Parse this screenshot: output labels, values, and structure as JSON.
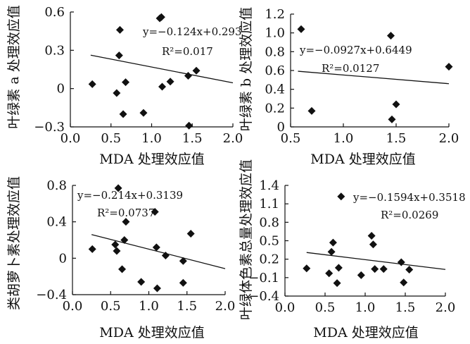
{
  "chart_data": [
    {
      "type": "scatter",
      "xlabel": "MDA 处理效应值",
      "ylabel": "叶绿素 a 处理效应值",
      "xlim": [
        0.0,
        2.0
      ],
      "ylim": [
        -0.3,
        0.6
      ],
      "xticks": [
        0.0,
        0.5,
        1.0,
        1.5,
        2.0
      ],
      "xtick_labels": [
        "0.0",
        "0.5",
        "1.0",
        "1.5",
        "2.0"
      ],
      "yticks": [
        -0.3,
        0.0,
        0.3,
        0.6
      ],
      "ytick_labels": [
        "−0.3",
        "0",
        "0.3",
        "0.6"
      ],
      "points": [
        {
          "x": 0.27,
          "y": 0.035
        },
        {
          "x": 0.57,
          "y": -0.035
        },
        {
          "x": 0.6,
          "y": 0.26
        },
        {
          "x": 0.61,
          "y": 0.46
        },
        {
          "x": 0.65,
          "y": -0.2
        },
        {
          "x": 0.68,
          "y": 0.05
        },
        {
          "x": 0.9,
          "y": -0.19
        },
        {
          "x": 1.1,
          "y": 0.55
        },
        {
          "x": 1.12,
          "y": 0.56
        },
        {
          "x": 1.13,
          "y": 0.015
        },
        {
          "x": 1.23,
          "y": 0.055
        },
        {
          "x": 1.45,
          "y": 0.1
        },
        {
          "x": 1.46,
          "y": -0.29
        },
        {
          "x": 1.55,
          "y": 0.14
        }
      ],
      "trendline": {
        "slope": -0.124,
        "intercept": 0.293,
        "x_range": [
          0.25,
          2.0
        ]
      },
      "equation": "y=−0.124x+0.293",
      "r2": "R²=0.017",
      "grid": false
    },
    {
      "type": "scatter",
      "xlabel": "MDA 处理效应值",
      "ylabel": "叶绿素 b 处理效应值",
      "xlim": [
        0.5,
        2.0
      ],
      "ylim": [
        0.0,
        1.2
      ],
      "xticks": [
        0.5,
        1.0,
        1.5,
        2.0
      ],
      "xtick_labels": [
        "0.5",
        "1.0",
        "1.5",
        "2.0"
      ],
      "yticks": [
        0.0,
        0.2,
        0.4,
        0.6,
        0.8,
        1.0,
        1.2
      ],
      "ytick_labels": [
        "0",
        "0.2",
        "0.4",
        "0.6",
        "0.8",
        "1.0",
        "1.2"
      ],
      "points": [
        {
          "x": 0.6,
          "y": 1.04
        },
        {
          "x": 0.7,
          "y": 0.17
        },
        {
          "x": 1.45,
          "y": 0.97
        },
        {
          "x": 1.46,
          "y": 0.08
        },
        {
          "x": 1.5,
          "y": 0.24
        },
        {
          "x": 2.0,
          "y": 0.64
        }
      ],
      "trendline": {
        "slope": -0.0927,
        "intercept": 0.6449,
        "x_range": [
          0.57,
          2.0
        ]
      },
      "equation": "y=−0.0927x+0.6449",
      "r2": "R²=0.0127",
      "grid": false
    },
    {
      "type": "scatter",
      "xlabel": "MDA 处理效应值",
      "ylabel": "类胡萝卜素处理效应值",
      "xlim": [
        0.0,
        2.0
      ],
      "ylim": [
        -0.4,
        0.8
      ],
      "xticks": [
        0.0,
        0.5,
        1.0,
        1.5,
        2.0
      ],
      "xtick_labels": [
        "0.0",
        "0.5",
        "1.0",
        "1.5",
        "2.0"
      ],
      "yticks": [
        -0.4,
        0.0,
        0.4,
        0.8
      ],
      "ytick_labels": [
        "−0.4",
        "0",
        "0.4",
        "0.8"
      ],
      "points": [
        {
          "x": 0.26,
          "y": 0.1
        },
        {
          "x": 0.56,
          "y": 0.15
        },
        {
          "x": 0.58,
          "y": 0.08
        },
        {
          "x": 0.6,
          "y": 0.77
        },
        {
          "x": 0.65,
          "y": -0.12
        },
        {
          "x": 0.68,
          "y": 0.2
        },
        {
          "x": 0.7,
          "y": 0.4
        },
        {
          "x": 0.9,
          "y": -0.26
        },
        {
          "x": 1.08,
          "y": 0.51
        },
        {
          "x": 1.1,
          "y": 0.12
        },
        {
          "x": 1.11,
          "y": -0.33
        },
        {
          "x": 1.22,
          "y": 0.03
        },
        {
          "x": 1.45,
          "y": -0.03
        },
        {
          "x": 1.45,
          "y": -0.27
        },
        {
          "x": 1.55,
          "y": 0.27
        }
      ],
      "trendline": {
        "slope": -0.214,
        "intercept": 0.3139,
        "x_range": [
          0.25,
          2.0
        ]
      },
      "equation": "y=−0.214x+0.3139",
      "r2": "R²=0.0737",
      "grid": false
    },
    {
      "type": "scatter",
      "xlabel": "MDA 处理效应值",
      "ylabel": "叶绿体色素总量处理效应值",
      "xlim": [
        0.0,
        2.0
      ],
      "ylim": [
        -0.4,
        1.4
      ],
      "xticks": [
        0.0,
        0.5,
        1.0,
        1.5,
        2.0
      ],
      "xtick_labels": [
        "0.0",
        "0.5",
        "1.0",
        "1.5",
        "2.0"
      ],
      "yticks": [
        -0.4,
        -0.1,
        0.2,
        0.5,
        0.8,
        1.1,
        1.4
      ],
      "ytick_labels": [
        "−0.4",
        "−0.1",
        "0.2",
        "0.5",
        "0.8",
        "1.1",
        "1.4"
      ],
      "points": [
        {
          "x": 0.27,
          "y": 0.05
        },
        {
          "x": 0.55,
          "y": -0.03
        },
        {
          "x": 0.58,
          "y": 0.32
        },
        {
          "x": 0.6,
          "y": 0.47
        },
        {
          "x": 0.65,
          "y": -0.19
        },
        {
          "x": 0.67,
          "y": 0.06
        },
        {
          "x": 0.7,
          "y": 1.22
        },
        {
          "x": 0.95,
          "y": -0.06
        },
        {
          "x": 1.08,
          "y": 0.58
        },
        {
          "x": 1.1,
          "y": 0.44
        },
        {
          "x": 1.12,
          "y": 0.04
        },
        {
          "x": 1.23,
          "y": 0.04
        },
        {
          "x": 1.45,
          "y": 0.15
        },
        {
          "x": 1.48,
          "y": -0.18
        },
        {
          "x": 1.55,
          "y": 0.03
        }
      ],
      "trendline": {
        "slope": -0.1594,
        "intercept": 0.3518,
        "x_range": [
          0.27,
          2.0
        ]
      },
      "equation": "y=−0.1594x+0.3518",
      "r2": "R²=0.0269",
      "grid": false
    }
  ]
}
